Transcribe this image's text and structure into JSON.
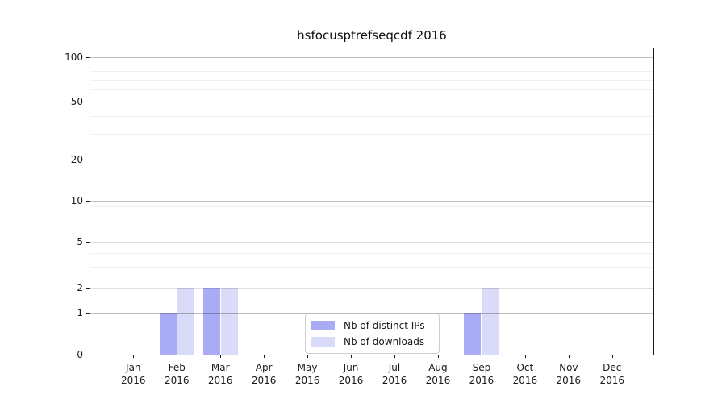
{
  "title": "hsfocusptrefseqcdf 2016",
  "colors": {
    "distinct_ips": "#a9abf5",
    "downloads": "#dadbf9",
    "axis": "#1a1a1a"
  },
  "legend": {
    "items": [
      {
        "label": "Nb of distinct IPs",
        "series": "distinct_ips"
      },
      {
        "label": "Nb of downloads",
        "series": "downloads"
      }
    ]
  },
  "chart_data": {
    "type": "bar",
    "title": "hsfocusptrefseqcdf 2016",
    "categories": [
      "Jan 2016",
      "Feb 2016",
      "Mar 2016",
      "Apr 2016",
      "May 2016",
      "Jun 2016",
      "Jul 2016",
      "Aug 2016",
      "Sep 2016",
      "Oct 2016",
      "Nov 2016",
      "Dec 2016"
    ],
    "series": [
      {
        "name": "Nb of distinct IPs",
        "color": "#a9abf5",
        "values": [
          0,
          1,
          2,
          0,
          0,
          0,
          0,
          0,
          1,
          0,
          0,
          0
        ]
      },
      {
        "name": "Nb of downloads",
        "color": "#dadbf9",
        "values": [
          0,
          2,
          2,
          0,
          0,
          0,
          0,
          0,
          2,
          0,
          0,
          0
        ]
      }
    ],
    "yscale": "log-like (log10(1+y))",
    "yticks": [
      100,
      50,
      20,
      10,
      5,
      2,
      1,
      0
    ],
    "minor_yticks": [
      3,
      4,
      6,
      7,
      8,
      9,
      30,
      40,
      60,
      70,
      80,
      90
    ],
    "ylim": [
      0,
      112
    ],
    "grid": "both",
    "legend_position": "lower center"
  }
}
